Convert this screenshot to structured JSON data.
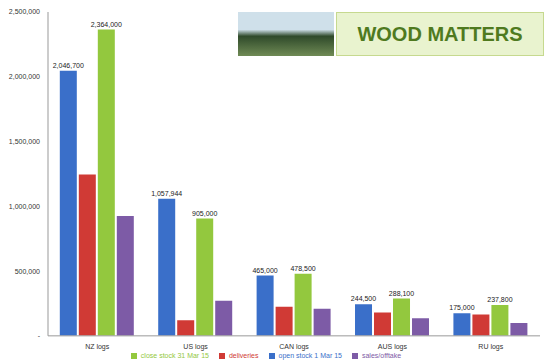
{
  "chart_data": {
    "type": "bar",
    "categories": [
      "NZ logs",
      "US logs",
      "CAN logs",
      "AUS logs",
      "RU logs"
    ],
    "series": [
      {
        "name": "open stock 1 Mar 15",
        "color": "#3a6fc9",
        "values": [
          2046700,
          1057944,
          465000,
          244500,
          175000
        ],
        "data_labels": true,
        "value_labels": [
          "2,046,700",
          "1,057,944",
          "465,000",
          "244,500",
          "175,000"
        ]
      },
      {
        "name": "deliveries",
        "color": "#d03a35",
        "values": [
          1245000,
          120000,
          225000,
          180000,
          165000
        ]
      },
      {
        "name": "close stock 31 Mar 15",
        "color": "#93c83e",
        "values": [
          2364000,
          905000,
          478500,
          288100,
          237800
        ],
        "data_labels": true,
        "value_labels": [
          "2,364,000",
          "905,000",
          "478,500",
          "288,100",
          "237,800"
        ]
      },
      {
        "name": "sales/offtake",
        "color": "#7d5ba6",
        "values": [
          925000,
          270000,
          210000,
          135000,
          100000
        ]
      }
    ],
    "ylim": [
      0,
      2500000
    ],
    "yticks": [
      {
        "value": 0,
        "label": "-"
      },
      {
        "value": 500000,
        "label": "500,000"
      },
      {
        "value": 1000000,
        "label": "1,000,000"
      },
      {
        "value": 1500000,
        "label": "1,500,000"
      },
      {
        "value": 2000000,
        "label": "2,000,000"
      },
      {
        "value": 2500000,
        "label": "2,500,000"
      }
    ],
    "grid": false,
    "legend": "bottom",
    "annotations": [
      "WOOD MATTERS"
    ]
  }
}
